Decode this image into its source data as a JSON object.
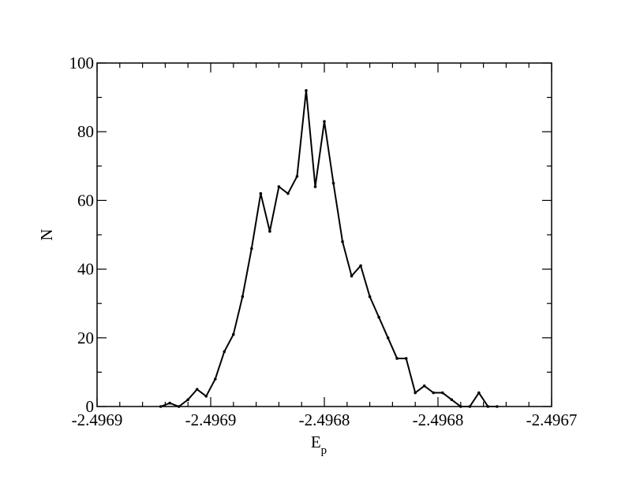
{
  "chart_data": {
    "type": "line",
    "xlabel": "E",
    "xlabel_subscript": "p",
    "ylabel": "N",
    "x": [
      -2.496872,
      -2.496868,
      -2.496864,
      -2.49686,
      -2.496856,
      -2.496852,
      -2.496848,
      -2.496844,
      -2.49684,
      -2.496836,
      -2.496832,
      -2.496828,
      -2.496824,
      -2.49682,
      -2.496816,
      -2.496812,
      -2.496808,
      -2.496804,
      -2.4968,
      -2.496796,
      -2.496792,
      -2.496788,
      -2.496784,
      -2.49678,
      -2.496776,
      -2.496772,
      -2.496768,
      -2.496764,
      -2.49676,
      -2.496756,
      -2.496752,
      -2.496748,
      -2.496744,
      -2.49674,
      -2.496736,
      -2.496732,
      -2.496728,
      -2.496724
    ],
    "series": [
      {
        "color": "#000000",
        "values": [
          0,
          1,
          0,
          2,
          5,
          3,
          8,
          16,
          21,
          32,
          46,
          62,
          51,
          64,
          62,
          67,
          92,
          64,
          83,
          65,
          48,
          38,
          41,
          32,
          26,
          20,
          14,
          14,
          4,
          6,
          4,
          4,
          2,
          0,
          0,
          4,
          0,
          0
        ]
      }
    ],
    "xlim": [
      -2.4969,
      -2.4967
    ],
    "xticks": [
      -2.4969,
      {
        "value": -2.49685,
        "label": "-2.4969"
      },
      -2.4968,
      {
        "value": -2.49675,
        "label": "-2.4968"
      },
      -2.4967
    ],
    "ylim": [
      0,
      100
    ],
    "yticks": [
      0,
      20,
      40,
      60,
      80,
      100
    ]
  }
}
